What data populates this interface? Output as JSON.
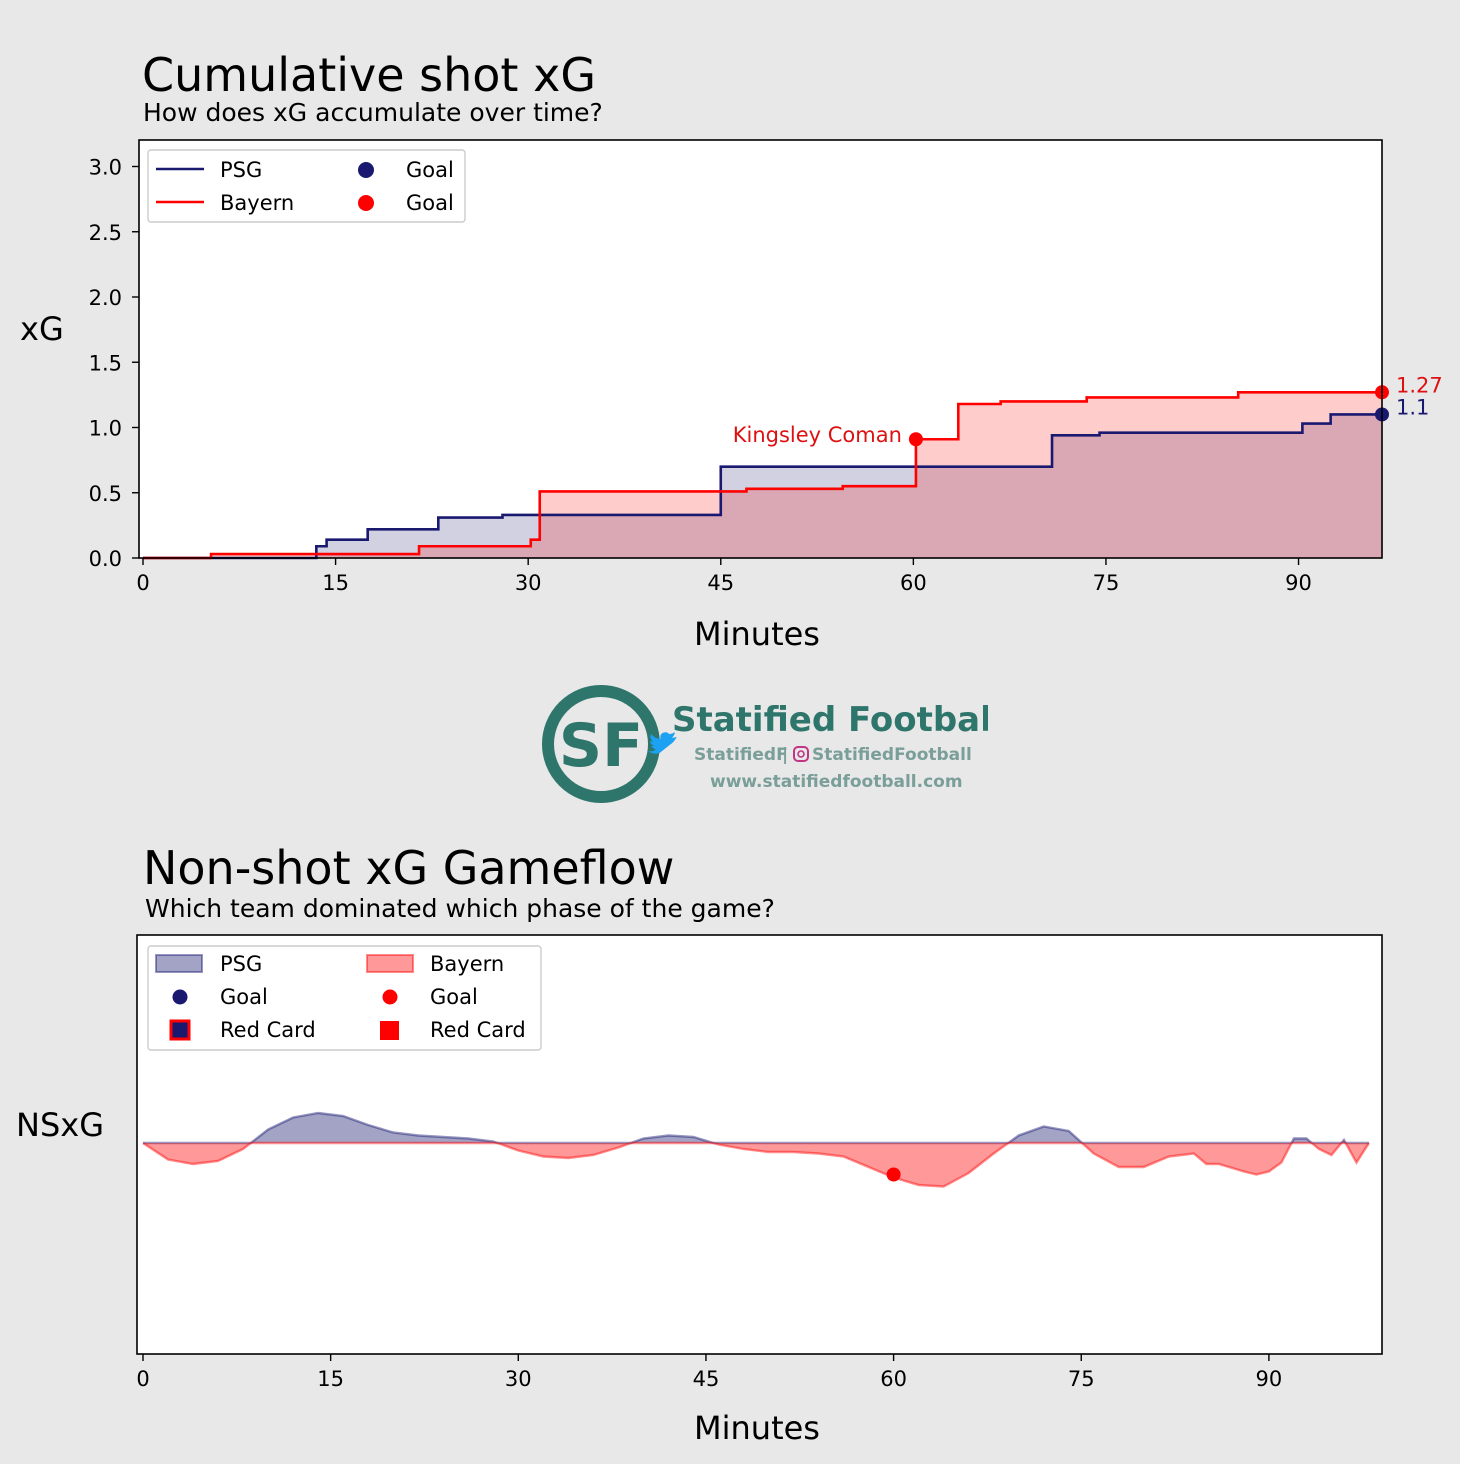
{
  "logo": {
    "monogram": "SF",
    "name": "Statified Football",
    "twitter": "StatifiedF",
    "separator": "|",
    "instagram": "StatifiedFootball",
    "url": "www.statifiedfootball.com",
    "color": "#2e756b"
  },
  "colors": {
    "psg": "#191970",
    "bayern": "#ff0000",
    "annot_bayern": "#dd1111"
  },
  "chart_data": [
    {
      "type": "line",
      "title": "Cumulative shot xG",
      "subtitle": "How does xG accumulate over time?",
      "xlabel": "Minutes",
      "ylabel": "xG",
      "xlim": [
        0,
        96.5
      ],
      "ylim": [
        0,
        3.2
      ],
      "xticks": [
        "0",
        "15",
        "30",
        "45",
        "60",
        "75",
        "90"
      ],
      "yticks": [
        "0.0",
        "0.5",
        "1.0",
        "1.5",
        "2.0",
        "2.5",
        "3.0"
      ],
      "legend": {
        "placement": "upper-left",
        "entries": [
          "PSG",
          "Bayern",
          "Goal",
          "Goal"
        ]
      },
      "series": [
        {
          "name": "PSG",
          "color": "#191970",
          "step_x": [
            0,
            13.5,
            14.3,
            17.5,
            23.0,
            28.0,
            45.0,
            70.8,
            74.5,
            90.3,
            92.5,
            96.5
          ],
          "step_y": [
            0,
            0.09,
            0.14,
            0.22,
            0.31,
            0.33,
            0.7,
            0.94,
            0.96,
            1.03,
            1.1,
            1.1
          ],
          "goals": [],
          "end_label": "1.1"
        },
        {
          "name": "Bayern",
          "color": "#ff0000",
          "step_x": [
            0,
            5.3,
            13.5,
            21.5,
            30.2,
            30.9,
            45.0,
            47.0,
            54.5,
            60.2,
            63.5,
            66.8,
            73.5,
            85.3,
            96.5
          ],
          "step_y": [
            0,
            0.03,
            0.03,
            0.09,
            0.14,
            0.51,
            0.51,
            0.53,
            0.55,
            0.91,
            1.18,
            1.2,
            1.23,
            1.27,
            1.27
          ],
          "goals": [
            {
              "minute": 60.2,
              "xg": 0.91,
              "label": "Kingsley Coman"
            }
          ],
          "end_label": "1.27"
        }
      ]
    },
    {
      "type": "area",
      "title": "Non-shot xG Gameflow",
      "subtitle": "Which team dominated which phase of the game?",
      "xlabel": "Minutes",
      "ylabel": "NSxG",
      "xlim": [
        0,
        99
      ],
      "ylim": [
        -1,
        1
      ],
      "xticks": [
        "0",
        "15",
        "30",
        "45",
        "60",
        "75",
        "90"
      ],
      "legend": {
        "placement": "upper-left",
        "entries": [
          "PSG",
          "Bayern",
          "Goal",
          "Goal",
          "Red Card",
          "Red Card"
        ]
      },
      "x": [
        0,
        2,
        4,
        6,
        8,
        10,
        12,
        14,
        16,
        18,
        20,
        22,
        24,
        26,
        28,
        30,
        32,
        34,
        36,
        38,
        40,
        42,
        44,
        46,
        48,
        50,
        52,
        54,
        56,
        58,
        60,
        62,
        64,
        66,
        68,
        70,
        72,
        74,
        76,
        78,
        80,
        82,
        84,
        85,
        86,
        88,
        89,
        90,
        91,
        92,
        93,
        94,
        95,
        96,
        97,
        98
      ],
      "y": [
        0,
        -0.11,
        -0.14,
        -0.12,
        -0.04,
        0.09,
        0.17,
        0.2,
        0.18,
        0.12,
        0.07,
        0.05,
        0.04,
        0.03,
        0.01,
        -0.05,
        -0.09,
        -0.1,
        -0.08,
        -0.03,
        0.03,
        0.05,
        0.04,
        -0.01,
        -0.04,
        -0.06,
        -0.06,
        -0.07,
        -0.09,
        -0.16,
        -0.23,
        -0.28,
        -0.29,
        -0.2,
        -0.07,
        0.05,
        0.11,
        0.08,
        -0.07,
        -0.16,
        -0.16,
        -0.09,
        -0.07,
        -0.14,
        -0.14,
        -0.19,
        -0.21,
        -0.19,
        -0.13,
        0.03,
        0.03,
        -0.04,
        -0.08,
        0.02,
        -0.13,
        0
      ],
      "series": [
        {
          "name": "PSG",
          "color": "#191970",
          "goals": [],
          "red_cards": []
        },
        {
          "name": "Bayern",
          "color": "#ff0000",
          "goals": [
            {
              "minute": 60,
              "value": -0.21
            }
          ],
          "red_cards": []
        }
      ]
    }
  ]
}
